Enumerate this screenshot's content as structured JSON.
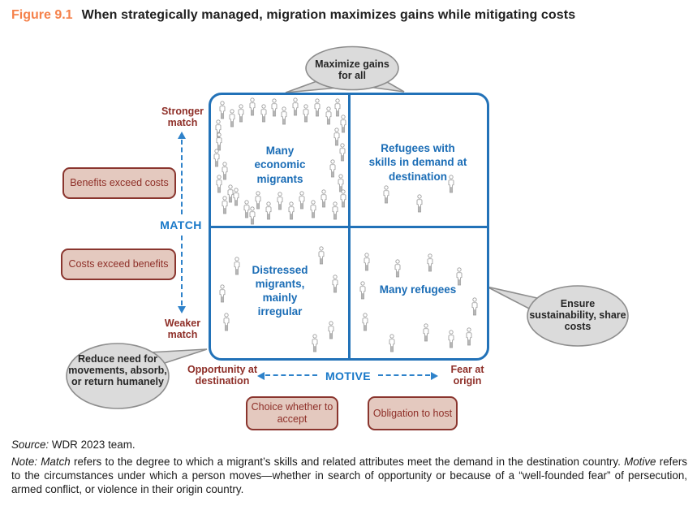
{
  "header": {
    "figure_label": "Figure 9.1",
    "title": "When strategically managed, migration maximizes gains while mitigating costs"
  },
  "colors": {
    "orange": "#f5814a",
    "blue": "#2272b8",
    "blue-text": "#1b6db6",
    "axis-blue": "#1878c8",
    "maroon": "#8e2f28",
    "box-fill": "#e4c9bf",
    "box-border": "#8a352e",
    "bubble-fill": "#dbdbdb",
    "bubble-border": "#8d8d8d",
    "icon-gray": "#9b9b9b"
  },
  "bubbles": {
    "top": "Maximize gains for all",
    "bottom_left": "Reduce need for movements, absorb, or return humanely",
    "right": "Ensure sustainability, share costs"
  },
  "axes": {
    "match": {
      "label": "MATCH",
      "top_end": "Stronger match",
      "bottom_end": "Weaker match",
      "high_zone": "Benefits exceed costs",
      "low_zone": "Costs exceed benefits"
    },
    "motive": {
      "label": "MOTIVE",
      "left_end": "Opportunity at destination",
      "right_end": "Fear at origin",
      "left_zone": "Choice whether to accept",
      "right_zone": "Obligation to host"
    }
  },
  "matrix": {
    "quadrants": [
      {
        "id": "top-left",
        "label": "Many economic migrants",
        "icons": [
          [
            8,
            12
          ],
          [
            15,
            18
          ],
          [
            5,
            26
          ],
          [
            22,
            14
          ],
          [
            30,
            9
          ],
          [
            38,
            14
          ],
          [
            46,
            10
          ],
          [
            53,
            16
          ],
          [
            61,
            9
          ],
          [
            69,
            14
          ],
          [
            77,
            10
          ],
          [
            85,
            16
          ],
          [
            92,
            10
          ],
          [
            96,
            22
          ],
          [
            6,
            36
          ],
          [
            4,
            48
          ],
          [
            10,
            58
          ],
          [
            6,
            68
          ],
          [
            14,
            75
          ],
          [
            91,
            32
          ],
          [
            95,
            44
          ],
          [
            88,
            56
          ],
          [
            94,
            67
          ],
          [
            10,
            84
          ],
          [
            18,
            78
          ],
          [
            26,
            87
          ],
          [
            34,
            80
          ],
          [
            42,
            88
          ],
          [
            50,
            81
          ],
          [
            58,
            88
          ],
          [
            66,
            80
          ],
          [
            74,
            87
          ],
          [
            82,
            79
          ],
          [
            90,
            88
          ],
          [
            96,
            79
          ],
          [
            30,
            92
          ]
        ]
      },
      {
        "id": "top-right",
        "label": "Refugees with skills in demand at destination",
        "icons": [
          [
            74,
            68
          ],
          [
            27,
            76
          ],
          [
            51,
            83
          ]
        ]
      },
      {
        "id": "bottom-left",
        "label": "Distressed migrants, mainly irregular",
        "icons": [
          [
            19,
            30
          ],
          [
            80,
            22
          ],
          [
            8,
            51
          ],
          [
            90,
            44
          ],
          [
            11,
            73
          ],
          [
            87,
            79
          ],
          [
            75,
            89
          ]
        ]
      },
      {
        "id": "bottom-right",
        "label": "Many refugees",
        "icons": [
          [
            13,
            27
          ],
          [
            35,
            32
          ],
          [
            59,
            28
          ],
          [
            80,
            38
          ],
          [
            10,
            49
          ],
          [
            91,
            61
          ],
          [
            12,
            73
          ],
          [
            56,
            81
          ],
          [
            31,
            89
          ],
          [
            74,
            86
          ],
          [
            87,
            84
          ]
        ]
      }
    ]
  },
  "footer": {
    "source": {
      "label": "Source:",
      "text": " WDR 2023 team."
    },
    "note": {
      "seg1": "Note: Match",
      "seg2": " refers to the degree to which a migrant’s skills and related attributes meet the demand in the destination country. ",
      "seg3": "Motive",
      "seg4": " refers to the circumstances under which a person moves—whether in search of opportunity or because of a “well-founded fear” of persecution, armed conflict, or violence in their origin country."
    }
  }
}
